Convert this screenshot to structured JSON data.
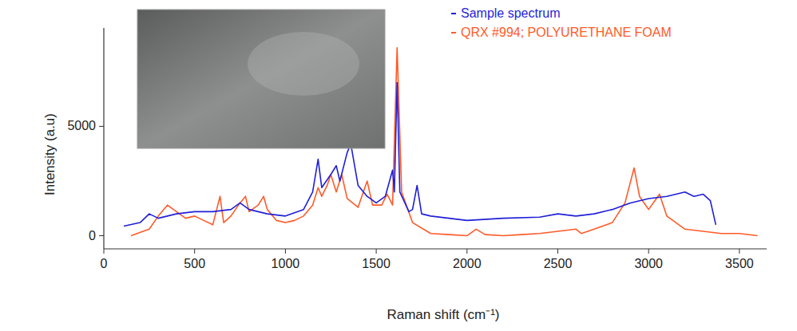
{
  "chart_data": {
    "type": "line",
    "x_label": "Raman shift (cm⁻¹)",
    "y_label": "Intensity (a.u)",
    "xlim": [
      0,
      3650
    ],
    "ylim": [
      -600,
      9500
    ],
    "xticks": [
      0,
      500,
      1000,
      1500,
      2000,
      2500,
      3000,
      3500
    ],
    "yticks": [
      0,
      5000
    ],
    "grid": false,
    "legend": "upper right",
    "series": [
      {
        "name": "Sample spectrum",
        "color": "#1f1fd8",
        "x": [
          110,
          200,
          250,
          300,
          400,
          500,
          600,
          700,
          750,
          800,
          900,
          1000,
          1100,
          1150,
          1180,
          1200,
          1250,
          1280,
          1300,
          1340,
          1360,
          1400,
          1450,
          1500,
          1550,
          1590,
          1600,
          1615,
          1630,
          1680,
          1700,
          1725,
          1750,
          1800,
          2000,
          2200,
          2400,
          2500,
          2600,
          2700,
          2800,
          2900,
          3000,
          3100,
          3200,
          3250,
          3300,
          3340,
          3370
        ],
        "values": [
          440,
          600,
          1000,
          800,
          1000,
          1100,
          1100,
          1200,
          1500,
          1200,
          1000,
          900,
          1200,
          2000,
          3500,
          2200,
          2800,
          3200,
          2500,
          3800,
          4200,
          2300,
          1800,
          1500,
          1800,
          3000,
          2000,
          7000,
          2000,
          1100,
          1200,
          2300,
          1000,
          900,
          700,
          800,
          850,
          1000,
          900,
          1000,
          1200,
          1500,
          1700,
          1800,
          2000,
          1800,
          1900,
          1600,
          500
        ]
      },
      {
        "name": "QRX #994; POLYURETHANE FOAM",
        "color": "#ff5a28",
        "x": [
          150,
          250,
          300,
          350,
          400,
          450,
          500,
          550,
          600,
          640,
          660,
          700,
          750,
          780,
          800,
          850,
          880,
          900,
          950,
          1000,
          1050,
          1100,
          1150,
          1180,
          1200,
          1230,
          1250,
          1280,
          1310,
          1340,
          1400,
          1450,
          1480,
          1530,
          1560,
          1590,
          1615,
          1640,
          1700,
          1800,
          1900,
          2000,
          2050,
          2100,
          2200,
          2300,
          2400,
          2500,
          2600,
          2630,
          2700,
          2800,
          2870,
          2920,
          2950,
          3000,
          3060,
          3100,
          3200,
          3300,
          3400,
          3500,
          3600
        ],
        "values": [
          0,
          300,
          900,
          1400,
          1100,
          800,
          900,
          700,
          500,
          1800,
          600,
          900,
          1500,
          1800,
          1100,
          1400,
          1800,
          1200,
          700,
          600,
          700,
          900,
          1400,
          2200,
          1800,
          2300,
          2800,
          2000,
          2800,
          1700,
          1300,
          2500,
          1400,
          1400,
          1900,
          1400,
          8600,
          2000,
          600,
          100,
          50,
          0,
          300,
          50,
          0,
          50,
          100,
          200,
          300,
          100,
          300,
          600,
          1500,
          3100,
          1800,
          1200,
          1900,
          900,
          300,
          200,
          100,
          100,
          0
        ]
      }
    ]
  }
}
